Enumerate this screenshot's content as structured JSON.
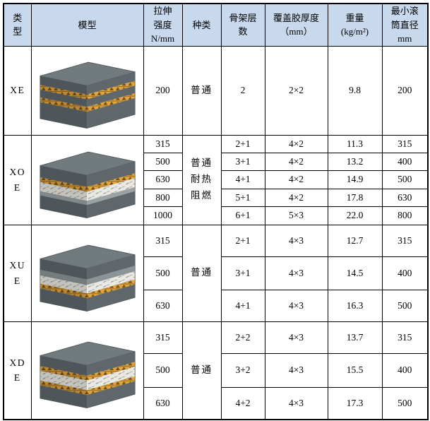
{
  "header": {
    "type": {
      "lines": [
        "类",
        "型"
      ]
    },
    "model": {
      "lines": [
        "模型"
      ]
    },
    "tensile": {
      "lines": [
        "拉伸",
        "强度",
        "N/mm"
      ]
    },
    "kind": {
      "lines": [
        "种类"
      ]
    },
    "plies": {
      "lines": [
        "骨架层",
        "数"
      ]
    },
    "cover": {
      "lines": [
        "覆盖胶厚度",
        "（mm）"
      ]
    },
    "weight": {
      "lines": [
        "重量",
        "(kg/m²)"
      ]
    },
    "drum": {
      "lines": [
        "最小滚",
        "筒直径",
        "mm"
      ]
    }
  },
  "blocks": [
    {
      "type_lines": {
        "l1": "XE",
        "l2": ""
      },
      "kind_lines": {
        "l1": "普通",
        "l2": "",
        "l3": ""
      },
      "model_icon": "belt-3d-xe",
      "rows": [
        {
          "tensile": "200",
          "plies": "2",
          "cover": "2×2",
          "weight": "9.8",
          "drum": "200"
        }
      ]
    },
    {
      "type_lines": {
        "l1": "XO",
        "l2": "E"
      },
      "kind_lines": {
        "l1": "普通",
        "l2": "耐热",
        "l3": "阻燃"
      },
      "model_icon": "belt-3d-xoe",
      "rows": [
        {
          "tensile": "315",
          "plies": "2+1",
          "cover": "4×2",
          "weight": "11.3",
          "drum": "315"
        },
        {
          "tensile": "500",
          "plies": "3+1",
          "cover": "4×2",
          "weight": "13.2",
          "drum": "400"
        },
        {
          "tensile": "630",
          "plies": "4+1",
          "cover": "4×2",
          "weight": "14.9",
          "drum": "500"
        },
        {
          "tensile": "800",
          "plies": "5+1",
          "cover": "4×2",
          "weight": "17.8",
          "drum": "630"
        },
        {
          "tensile": "1000",
          "plies": "6+1",
          "cover": "5×3",
          "weight": "22.0",
          "drum": "800"
        }
      ]
    },
    {
      "type_lines": {
        "l1": "XU",
        "l2": "E"
      },
      "kind_lines": {
        "l1": "普通",
        "l2": "",
        "l3": ""
      },
      "model_icon": "belt-3d-xue",
      "rows": [
        {
          "tensile": "315",
          "plies": "2+1",
          "cover": "4×3",
          "weight": "12.7",
          "drum": "315"
        },
        {
          "tensile": "500",
          "plies": "3+1",
          "cover": "4×3",
          "weight": "14.5",
          "drum": "400"
        },
        {
          "tensile": "630",
          "plies": "4+1",
          "cover": "4×3",
          "weight": "16.3",
          "drum": "500"
        }
      ]
    },
    {
      "type_lines": {
        "l1": "XD",
        "l2": "E"
      },
      "kind_lines": {
        "l1": "普通",
        "l2": "",
        "l3": ""
      },
      "model_icon": "belt-3d-xde",
      "rows": [
        {
          "tensile": "315",
          "plies": "2+2",
          "cover": "4×3",
          "weight": "13.7",
          "drum": "315"
        },
        {
          "tensile": "500",
          "plies": "3+2",
          "cover": "4×3",
          "weight": "15.5",
          "drum": "400"
        },
        {
          "tensile": "630",
          "plies": "4+2",
          "cover": "4×3",
          "weight": "17.3",
          "drum": "500"
        }
      ]
    }
  ],
  "belt_layers": {
    "xe": [
      {
        "fill": "gray",
        "h": 13
      },
      {
        "fill": "yellow",
        "h": 7
      },
      {
        "fill": "gray",
        "h": 11
      },
      {
        "fill": "yellow",
        "h": 7
      },
      {
        "fill": "gray",
        "h": 24
      }
    ],
    "xoe": [
      {
        "fill": "gray",
        "h": 17
      },
      {
        "fill": "yellow",
        "h": 7
      },
      {
        "fill": "fabric",
        "h": 13
      },
      {
        "fill": "lightgray",
        "h": 6
      },
      {
        "fill": "gray",
        "h": 19
      }
    ],
    "xue": [
      {
        "fill": "gray",
        "h": 16
      },
      {
        "fill": "midgray",
        "h": 8
      },
      {
        "fill": "fabric",
        "h": 12
      },
      {
        "fill": "yellow",
        "h": 7
      },
      {
        "fill": "gray",
        "h": 19
      }
    ],
    "xde": [
      {
        "fill": "gray",
        "h": 15
      },
      {
        "fill": "yellow",
        "h": 7
      },
      {
        "fill": "fabric",
        "h": 14
      },
      {
        "fill": "yellow",
        "h": 7
      },
      {
        "fill": "gray",
        "h": 19
      }
    ]
  },
  "colors": {
    "header_bg": "#c8d9ee",
    "border": "#000000",
    "gray": "#5f676a",
    "top_face": "#717a7d",
    "yellow": "#e2a33b",
    "fabric": "#eae8e2",
    "lightgray": "#9aa3a4",
    "midgray": "#8b9496"
  }
}
